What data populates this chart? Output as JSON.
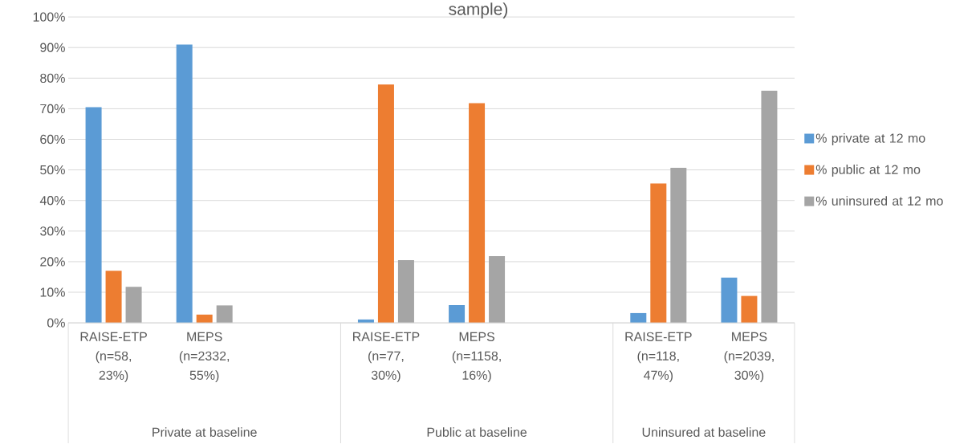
{
  "chart_data": {
    "type": "bar",
    "title": "sample)",
    "categories": [
      "RAISE-ETP (n=58, 23%)",
      "MEPS (n=2332, 55%)",
      null,
      "RAISE-ETP (n=77, 30%)",
      "MEPS (n=1158, 16%)",
      null,
      "RAISE-ETP (n=118, 47%)",
      "MEPS (n=2039, 30%)"
    ],
    "series": [
      {
        "name": "% private at 12 mo",
        "color": "#5b9bd5",
        "values": [
          70.5,
          91,
          null,
          1.1,
          5.8,
          null,
          3.2,
          14.8
        ]
      },
      {
        "name": "% public at 12 mo",
        "color": "#ed7d31",
        "values": [
          17,
          2.7,
          null,
          77.9,
          71.8,
          null,
          45.6,
          8.8
        ]
      },
      {
        "name": "% uninsured at 12 mo",
        "color": "#a5a5a5",
        "values": [
          11.8,
          5.7,
          null,
          20.5,
          21.8,
          null,
          50.7,
          75.9
        ]
      }
    ],
    "ylim": [
      0,
      100
    ],
    "yticks": [
      {
        "value": 0,
        "label": "0%"
      },
      {
        "value": 10,
        "label": "10%"
      },
      {
        "value": 20,
        "label": "20%"
      },
      {
        "value": 30,
        "label": "30%"
      },
      {
        "value": 40,
        "label": "40%"
      },
      {
        "value": 50,
        "label": "50%"
      },
      {
        "value": 60,
        "label": "60%"
      },
      {
        "value": 70,
        "label": "70%"
      },
      {
        "value": 80,
        "label": "80%"
      },
      {
        "value": 90,
        "label": "90%"
      },
      {
        "value": 100,
        "label": "100%"
      }
    ],
    "annotations": [
      "Private at baseline",
      "Public at baseline",
      "Uninsured at baseline"
    ],
    "grid": "y",
    "legend": "right"
  }
}
